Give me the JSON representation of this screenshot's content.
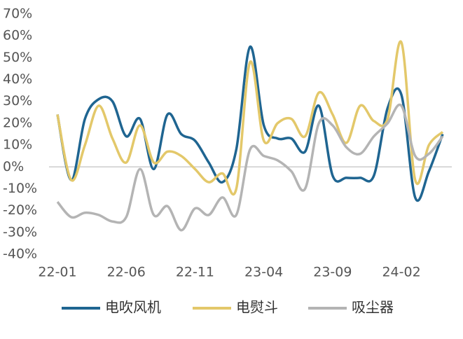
{
  "chart_data": {
    "type": "line",
    "categories": [
      "22-01",
      null,
      null,
      null,
      null,
      "22-06",
      null,
      null,
      null,
      null,
      "22-11",
      null,
      null,
      null,
      null,
      "23-04",
      null,
      null,
      null,
      null,
      "23-09",
      null,
      null,
      null,
      null,
      "24-02",
      null,
      null,
      null
    ],
    "series": [
      {
        "name": "电吹风机",
        "color": "#1f6591",
        "values": [
          24,
          -6,
          22,
          31,
          30,
          14,
          22,
          -1,
          24,
          15,
          12,
          2,
          -7,
          8,
          55,
          19,
          13,
          13,
          7,
          28,
          -4,
          -5,
          -5,
          -4,
          27,
          33,
          -14,
          -2,
          15
        ]
      },
      {
        "name": "电熨斗",
        "color": "#e3c86a",
        "values": [
          24,
          -6,
          10,
          28,
          13,
          2,
          19,
          2,
          7,
          5,
          -1,
          -7,
          -3,
          -10,
          48,
          12,
          20,
          22,
          14,
          34,
          24,
          11,
          28,
          21,
          22,
          57,
          -6,
          10,
          16
        ]
      },
      {
        "name": "吸尘器",
        "color": "#b4b4b4",
        "values": [
          -16,
          -23,
          -21,
          -22,
          -25,
          -23,
          -1,
          -22,
          -18,
          -29,
          -19,
          -22,
          -14,
          -22,
          8,
          5,
          3,
          -2,
          -10,
          20,
          19,
          9,
          6,
          14,
          20,
          28,
          5,
          6,
          14
        ]
      }
    ],
    "ylim": [
      -40,
      70
    ],
    "yticks": [
      {
        "value": -40,
        "label": "-40%"
      },
      {
        "value": -30,
        "label": "-30%"
      },
      {
        "value": -20,
        "label": "-20%"
      },
      {
        "value": -10,
        "label": "-10%"
      },
      {
        "value": 0,
        "label": "0%"
      },
      {
        "value": 10,
        "label": "10%"
      },
      {
        "value": 20,
        "label": "20%"
      },
      {
        "value": 30,
        "label": "30%"
      },
      {
        "value": 40,
        "label": "40%"
      },
      {
        "value": 50,
        "label": "50%"
      },
      {
        "value": 60,
        "label": "60%"
      },
      {
        "value": 70,
        "label": "70%"
      }
    ],
    "legend": "bottom"
  }
}
